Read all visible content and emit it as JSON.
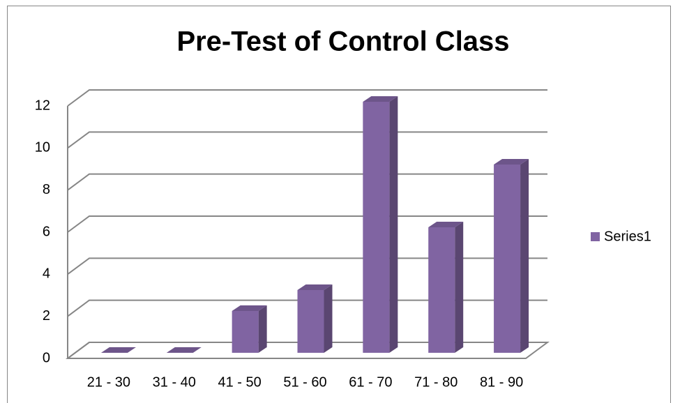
{
  "chart_data": {
    "type": "bar",
    "title": "Pre-Test of Control Class",
    "categories": [
      "21 - 30",
      "31 - 40",
      "41 - 50",
      "51 - 60",
      "61 - 70",
      "71 - 80",
      "81 - 90"
    ],
    "series": [
      {
        "name": "Series1",
        "color": "#8064a2",
        "values": [
          0,
          0,
          2,
          3,
          12,
          6,
          9
        ]
      }
    ],
    "ylim": [
      0,
      12
    ],
    "yticks": [
      0,
      2,
      4,
      6,
      8,
      10,
      12
    ],
    "grid": true,
    "legend": "right"
  }
}
